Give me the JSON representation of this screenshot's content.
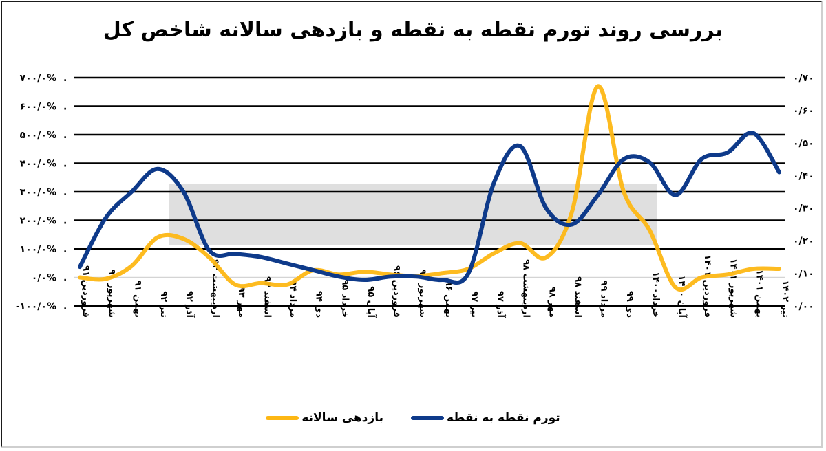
{
  "chart_data": {
    "type": "line",
    "title": "بررسی روند تورم نقطه به نقطه و بازدهی سالانه شاخص کل",
    "xlabel": "",
    "ylabel_left": "بازدهی سالانه",
    "ylabel_right": "تورم نقطه به نقطه",
    "ylim_left": [
      -100,
      700
    ],
    "ylim_right": [
      0.0,
      0.7
    ],
    "yticks_left": [
      "-۱۰۰/۰%",
      "۰/۰%",
      "۱۰۰/۰%",
      "۲۰۰/۰%",
      "۳۰۰/۰%",
      "۴۰۰/۰%",
      "۵۰۰/۰%",
      "۶۰۰/۰%",
      "۷۰۰/۰%"
    ],
    "yticks_right": [
      "۰/۰۰",
      "۰/۱۰",
      "۰/۲۰",
      "۰/۳۰",
      "۰/۴۰",
      "۰/۵۰",
      "۰/۶۰",
      "۰/۷۰"
    ],
    "grid": true,
    "legend_position": "bottom",
    "categories": [
      "فروردین ۹۱",
      "شهریور ۹۱",
      "بهمن ۹۱",
      "تیر ۹۲",
      "آذر ۹۲",
      "اردیبهشت ۹۳",
      "مهر ۹۳",
      "اسفند ۹۳",
      "مرداد ۹۴",
      "دی ۹۴",
      "خرداد ۹۵",
      "آبان ۹۵",
      "فروردین ۹۶",
      "شهریور ۹۶",
      "بهمن ۹۶",
      "تیر ۹۷",
      "آذر ۹۷",
      "اردیبهشت ۹۸",
      "مهر ۹۸",
      "اسفند ۹۸",
      "مرداد ۹۹",
      "دی ۹۹",
      "خرداد۱۴۰۰",
      "آبان ۱۴۰۰",
      "فروردین ۱۴۰۱",
      "شهریور ۱۴۰۱",
      "بهمن ۱۴۰۱",
      "تیر ۱۴۰۲"
    ],
    "series": [
      {
        "name": "بازدهی سالانه",
        "axis": "left",
        "color": "#FDB714",
        "unit": "%",
        "values": [
          0,
          -5,
          40,
          140,
          135,
          70,
          -25,
          -20,
          -25,
          25,
          10,
          20,
          10,
          5,
          15,
          30,
          85,
          120,
          70,
          230,
          670,
          300,
          165,
          -35,
          0,
          10,
          30,
          30
        ]
      },
      {
        "name": "تورم نقطه به نقطه",
        "axis": "right",
        "color": "#0E3A8A",
        "unit": "ratio",
        "values": [
          0.12,
          0.27,
          0.35,
          0.42,
          0.35,
          0.17,
          0.16,
          0.15,
          0.13,
          0.11,
          0.09,
          0.08,
          0.09,
          0.09,
          0.08,
          0.1,
          0.38,
          0.49,
          0.3,
          0.25,
          0.34,
          0.45,
          0.44,
          0.34,
          0.45,
          0.47,
          0.53,
          0.41
        ]
      }
    ]
  },
  "legend": {
    "items": [
      {
        "label": "تورم نقطه به نقطه",
        "color": "#0E3A8A"
      },
      {
        "label": "بازدهی سالانه",
        "color": "#FDB714"
      }
    ]
  }
}
